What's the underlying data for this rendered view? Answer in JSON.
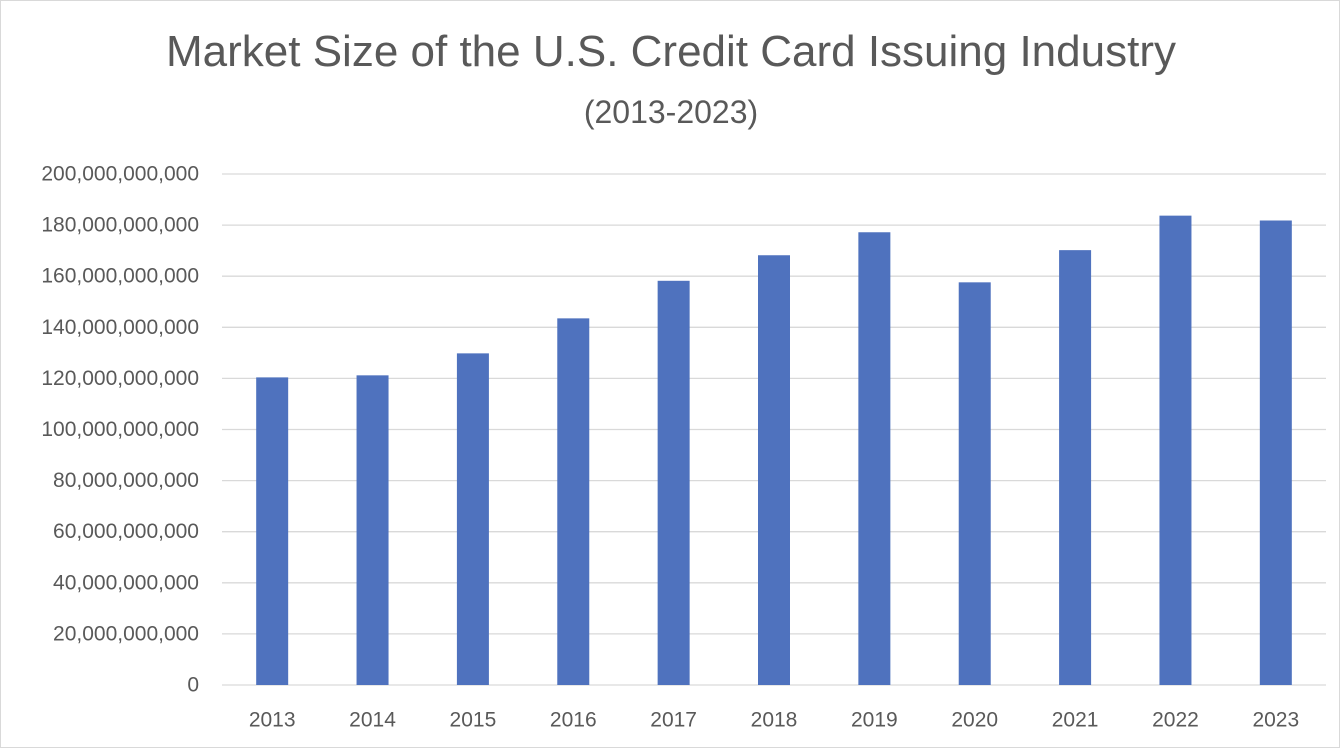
{
  "chart_data": {
    "type": "bar",
    "title": "Market Size of the U.S. Credit Card Issuing Industry",
    "subtitle": "(2013-2023)",
    "xlabel": "",
    "ylabel": "",
    "categories": [
      "2013",
      "2014",
      "2015",
      "2016",
      "2017",
      "2018",
      "2019",
      "2020",
      "2021",
      "2022",
      "2023"
    ],
    "values": [
      120400000000,
      121200000000,
      129800000000,
      143500000000,
      158200000000,
      168200000000,
      177200000000,
      157600000000,
      170200000000,
      183700000000,
      181800000000
    ],
    "ylim": [
      0,
      200000000000
    ],
    "yticks": [
      0,
      20000000000,
      40000000000,
      60000000000,
      80000000000,
      100000000000,
      120000000000,
      140000000000,
      160000000000,
      180000000000,
      200000000000
    ],
    "ytick_labels": [
      "0",
      "20,000,000,000",
      "40,000,000,000",
      "60,000,000,000",
      "80,000,000,000",
      "100,000,000,000",
      "120,000,000,000",
      "140,000,000,000",
      "160,000,000,000",
      "180,000,000,000",
      "200,000,000,000"
    ],
    "grid": true,
    "legend": "none",
    "bar_color": "#4F72BE",
    "grid_color": "#D9D9D9",
    "text_color": "#595959"
  }
}
